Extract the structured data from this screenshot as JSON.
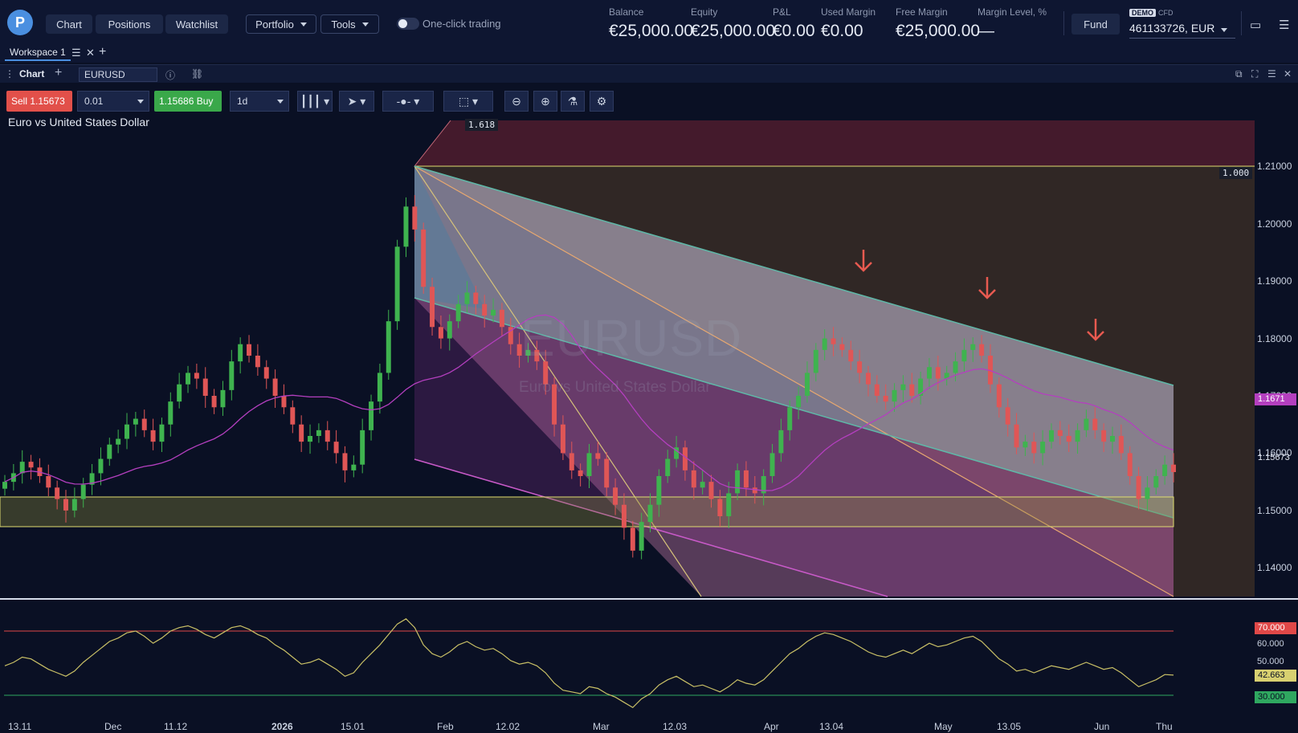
{
  "topbar": {
    "nav": [
      "Chart",
      "Positions",
      "Watchlist"
    ],
    "portfolio": "Portfolio",
    "tools": "Tools",
    "one_click": "One-click trading",
    "account": [
      {
        "label": "Balance",
        "value": "€25,000.00"
      },
      {
        "label": "Equity",
        "value": "€25,000.00"
      },
      {
        "label": "P&L",
        "value": "€0.00"
      },
      {
        "label": "Used Margin",
        "value": "€0.00"
      },
      {
        "label": "Free Margin",
        "value": "€25,000.00"
      },
      {
        "label": "Margin Level, %",
        "value": "—"
      }
    ],
    "fund": "Fund",
    "demo": "DEMO",
    "cfd": "CFD",
    "account_id": "461133726, EUR"
  },
  "workspace": {
    "tab": "Workspace 1"
  },
  "chart_header": {
    "title": "Chart",
    "symbol": "EURUSD"
  },
  "toolbar": {
    "sell_label": "Sell",
    "sell_price": "1.15673",
    "quantity": "0.01",
    "buy_price": "1.15686",
    "buy_label": "Buy",
    "timeframe": "1d"
  },
  "instrument": {
    "name": "Euro vs United States Dollar",
    "symbol": "EURUSD"
  },
  "colors": {
    "sell": "#e2504a",
    "buy": "#3aa84a",
    "up_candle": "#3fb34f",
    "down_candle": "#e05656",
    "ma": "#b43fbf",
    "rsi": "#c9c066",
    "accent": "#4a8fe0"
  },
  "chart_data": [
    {
      "type": "candlestick",
      "title": "Euro vs United States Dollar",
      "y_ticks": [
        "1.21000",
        "1.20000",
        "1.19000",
        "1.18000",
        "1.17000",
        "1.16000",
        "1.15000",
        "1.14000"
      ],
      "ylim": [
        1.135,
        1.219
      ],
      "x_ticks": [
        "13.11",
        "Dec",
        "11.12",
        "2026",
        "15.01",
        "Feb",
        "12.02",
        "Mar",
        "12.03",
        "Apr",
        "13.04",
        "May",
        "13.05",
        "Jun",
        "Thu"
      ],
      "moving_average_label": "1.1671",
      "current_price_label": "1.15673",
      "fib_levels": [
        "1.618",
        "1.000"
      ],
      "support_zone": [
        1.1449,
        1.15
      ],
      "resistance_arrows": 3,
      "closes": [
        1.155,
        1.1565,
        1.1585,
        1.1575,
        1.156,
        1.154,
        1.152,
        1.15,
        1.152,
        1.1545,
        1.1565,
        1.159,
        1.1615,
        1.1625,
        1.165,
        1.166,
        1.164,
        1.162,
        1.165,
        1.169,
        1.172,
        1.174,
        1.173,
        1.17,
        1.168,
        1.171,
        1.176,
        1.179,
        1.177,
        1.175,
        1.173,
        1.17,
        1.168,
        1.165,
        1.162,
        1.163,
        1.164,
        1.162,
        1.16,
        1.157,
        1.158,
        1.164,
        1.169,
        1.174,
        1.183,
        1.196,
        1.203,
        1.199,
        1.189,
        1.182,
        1.18,
        1.183,
        1.186,
        1.188,
        1.186,
        1.184,
        1.185,
        1.182,
        1.179,
        1.177,
        1.178,
        1.176,
        1.172,
        1.165,
        1.16,
        1.157,
        1.156,
        1.16,
        1.159,
        1.154,
        1.151,
        1.147,
        1.143,
        1.148,
        1.151,
        1.156,
        1.159,
        1.161,
        1.157,
        1.154,
        1.155,
        1.152,
        1.149,
        1.153,
        1.157,
        1.154,
        1.153,
        1.156,
        1.16,
        1.164,
        1.168,
        1.17,
        1.174,
        1.178,
        1.18,
        1.179,
        1.178,
        1.176,
        1.174,
        1.172,
        1.17,
        1.169,
        1.171,
        1.172,
        1.17,
        1.173,
        1.175,
        1.173,
        1.174,
        1.176,
        1.178,
        1.179,
        1.177,
        1.172,
        1.168,
        1.165,
        1.161,
        1.162,
        1.16,
        1.162,
        1.164,
        1.163,
        1.162,
        1.164,
        1.166,
        1.164,
        1.162,
        1.163,
        1.16,
        1.156,
        1.152,
        1.154,
        1.156,
        1.158,
        1.1567
      ]
    },
    {
      "type": "line",
      "name": "RSI",
      "ylim": [
        20,
        80
      ],
      "levels": [
        70,
        30
      ],
      "y_ticks": [
        "70.000",
        "60.000",
        "50.000",
        "42.663",
        "30.000"
      ],
      "current_label": "42.663",
      "values": [
        48,
        50,
        53,
        52,
        49,
        46,
        44,
        42,
        45,
        50,
        54,
        58,
        62,
        64,
        67,
        68,
        65,
        61,
        64,
        68,
        70,
        71,
        69,
        66,
        64,
        67,
        70,
        71,
        69,
        66,
        64,
        60,
        57,
        53,
        49,
        50,
        52,
        49,
        46,
        42,
        44,
        50,
        55,
        60,
        66,
        72,
        75,
        70,
        60,
        55,
        53,
        56,
        60,
        62,
        59,
        57,
        58,
        55,
        51,
        49,
        50,
        48,
        44,
        38,
        34,
        33,
        32,
        36,
        35,
        32,
        30,
        27,
        24,
        29,
        32,
        37,
        40,
        42,
        39,
        36,
        37,
        35,
        33,
        36,
        40,
        38,
        37,
        40,
        45,
        50,
        55,
        58,
        62,
        65,
        67,
        66,
        64,
        62,
        59,
        56,
        54,
        53,
        55,
        57,
        55,
        58,
        61,
        59,
        60,
        62,
        64,
        65,
        62,
        57,
        52,
        49,
        45,
        46,
        44,
        46,
        48,
        47,
        46,
        48,
        50,
        48,
        46,
        47,
        44,
        40,
        36,
        38,
        40,
        43,
        42.663
      ]
    }
  ]
}
